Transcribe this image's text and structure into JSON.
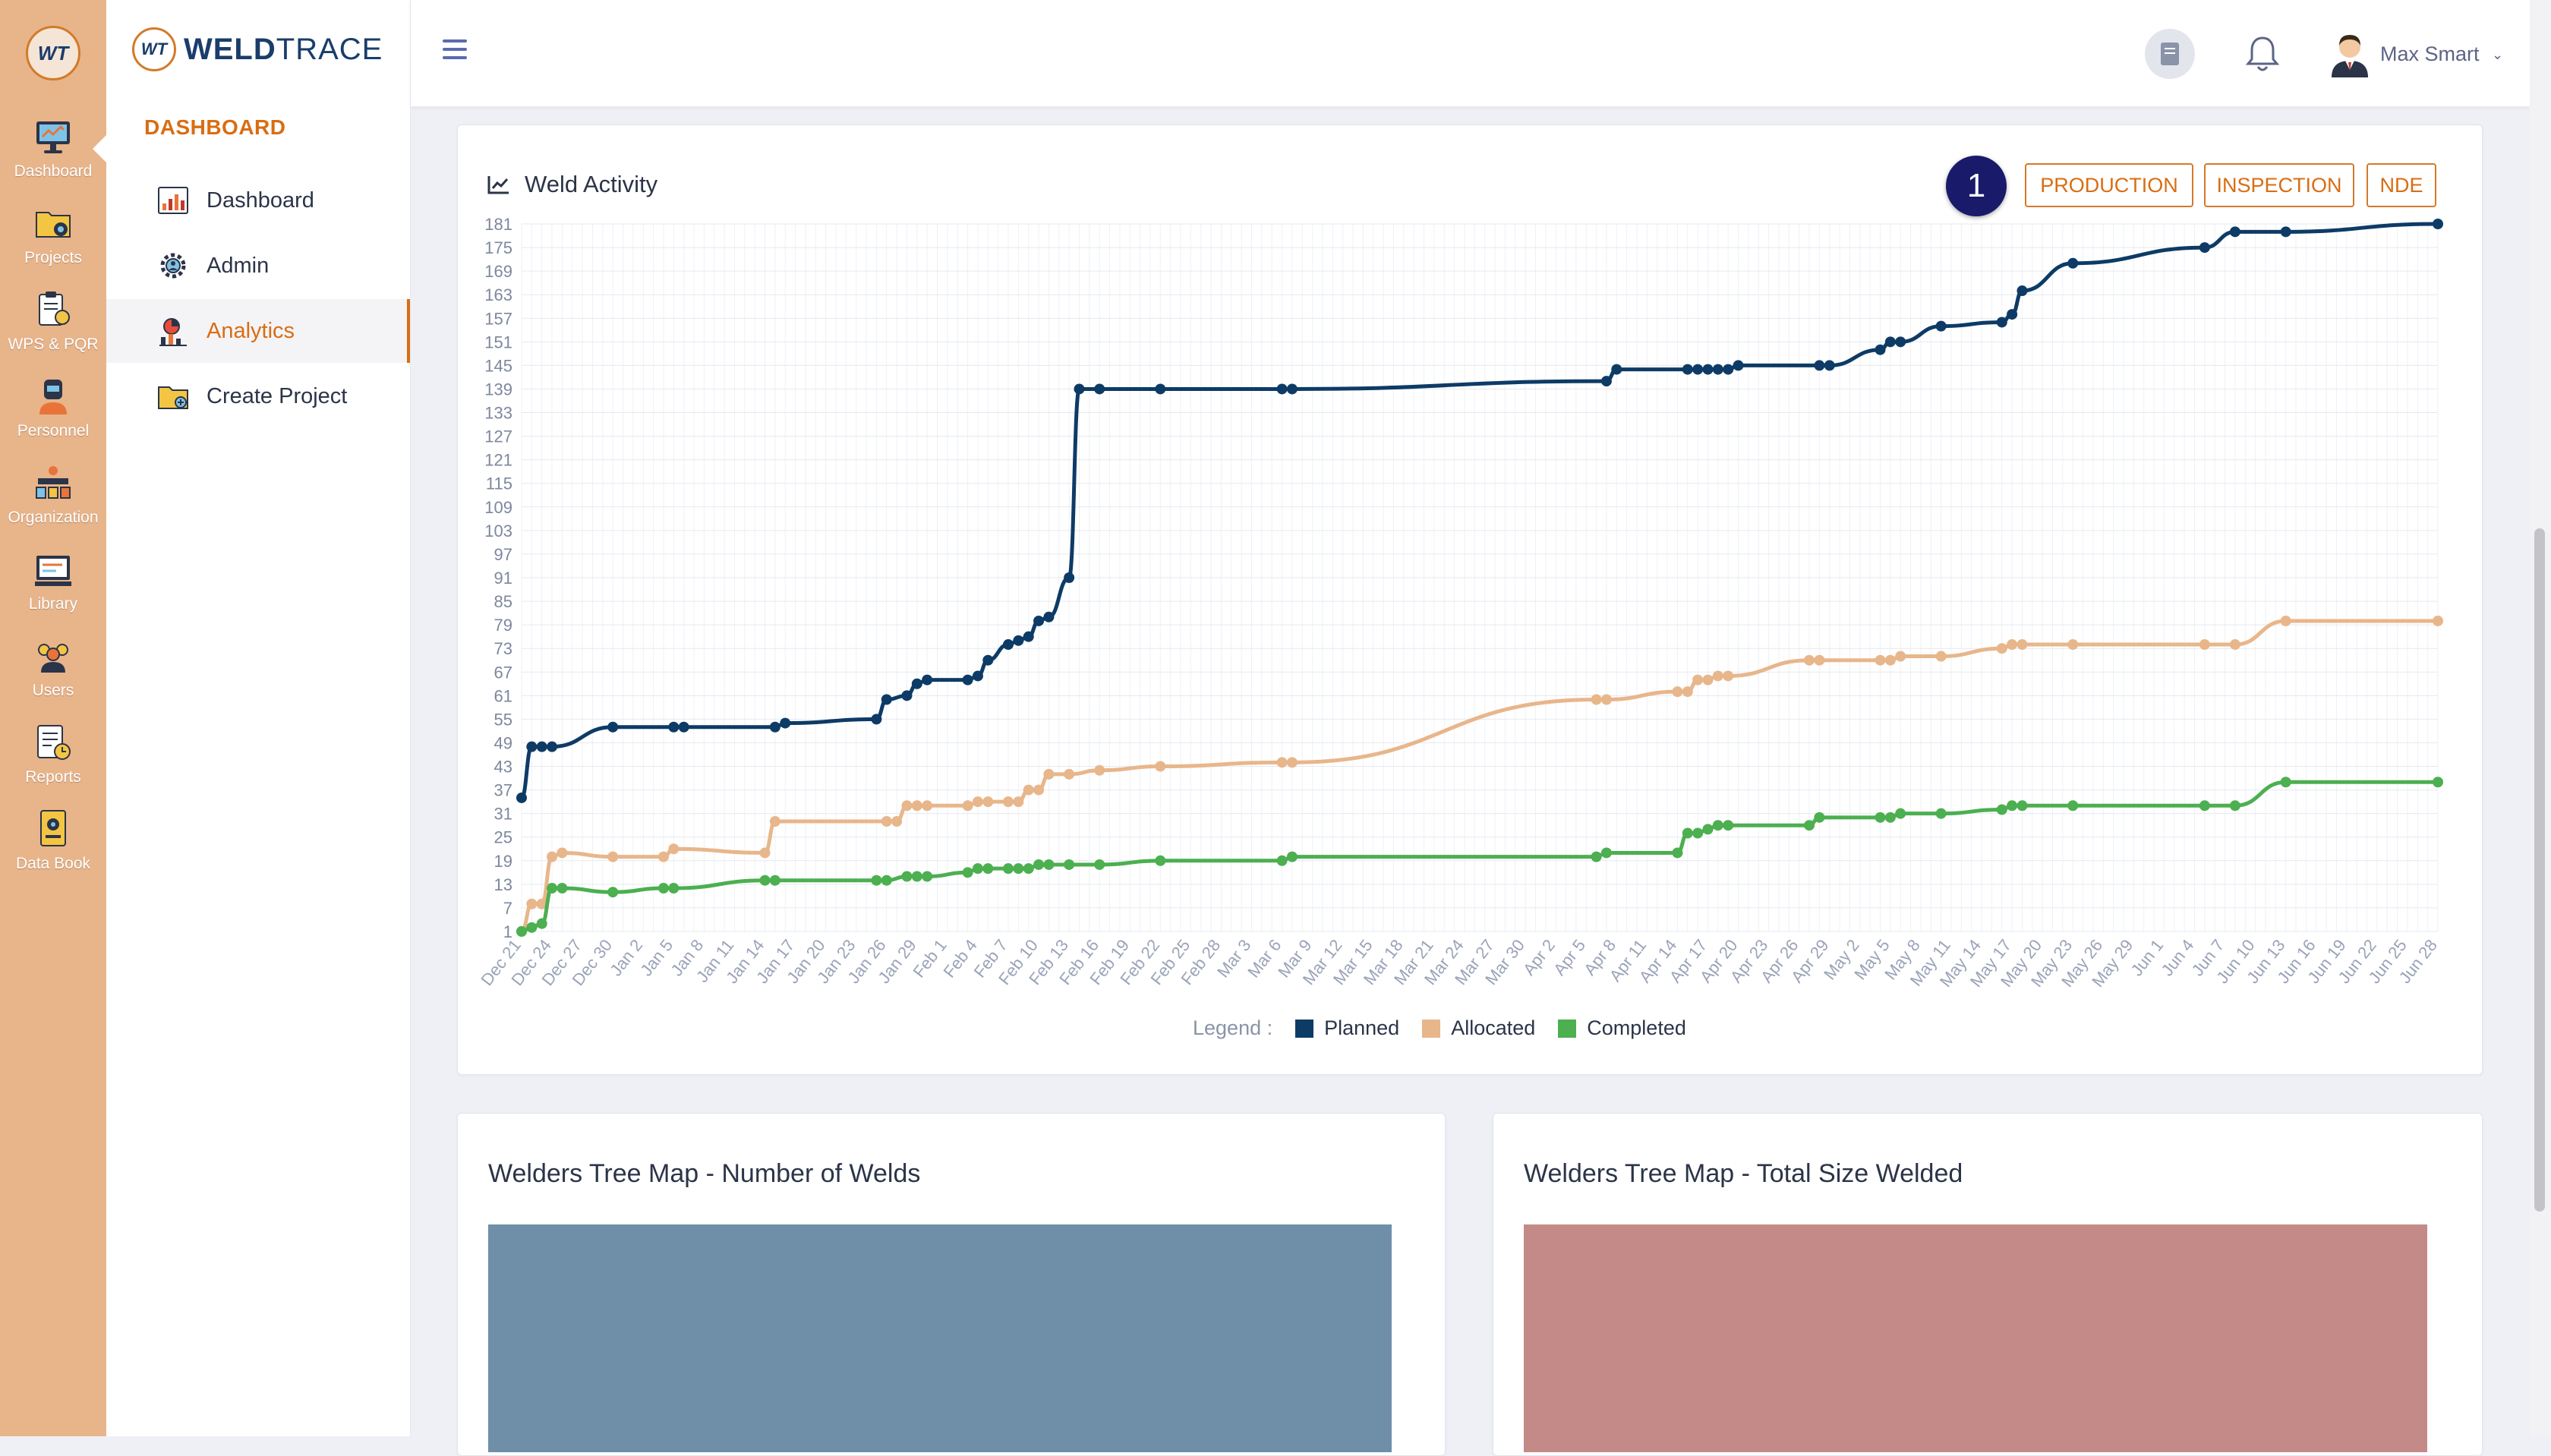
{
  "rail": {
    "logo": "WT",
    "items": [
      {
        "label": "Dashboard",
        "icon": "monitor-icon"
      },
      {
        "label": "Projects",
        "icon": "folder-gear-icon"
      },
      {
        "label": "WPS & PQR",
        "icon": "clipboard-gear-icon"
      },
      {
        "label": "Personnel",
        "icon": "welder-icon"
      },
      {
        "label": "Organization",
        "icon": "organization-icon"
      },
      {
        "label": "Library",
        "icon": "library-icon"
      },
      {
        "label": "Users",
        "icon": "users-icon"
      },
      {
        "label": "Reports",
        "icon": "reports-icon"
      },
      {
        "label": "Data Book",
        "icon": "data-book-icon"
      }
    ]
  },
  "brand": {
    "badge": "WT",
    "name_bold": "WELD",
    "name_light": "TRACE"
  },
  "sidebar": {
    "section": "DASHBOARD",
    "items": [
      {
        "label": "Dashboard",
        "icon": "chart-icon"
      },
      {
        "label": "Admin",
        "icon": "admin-gear-icon"
      },
      {
        "label": "Analytics",
        "icon": "analytics-icon"
      },
      {
        "label": "Create Project",
        "icon": "folder-add-icon"
      }
    ]
  },
  "topbar": {
    "user_name": "Max Smart",
    "chevron": "⌄"
  },
  "weld_activity": {
    "title": "Weld Activity",
    "step_badge": "1",
    "buttons": [
      "PRODUCTION",
      "INSPECTION",
      "NDE"
    ],
    "legend_label": "Legend :"
  },
  "chart_data": {
    "type": "line",
    "title": "Weld Activity",
    "yticks": [
      1,
      7,
      13,
      19,
      25,
      31,
      37,
      43,
      49,
      55,
      61,
      67,
      73,
      79,
      85,
      91,
      97,
      103,
      109,
      115,
      121,
      127,
      133,
      139,
      145,
      151,
      157,
      163,
      169,
      175,
      181
    ],
    "ylim": [
      1,
      181
    ],
    "x_axis_labels": [
      "Dec 21",
      "Dec 24",
      "Dec 27",
      "Dec 30",
      "Jan 2",
      "Jan 5",
      "Jan 8",
      "Jan 11",
      "Jan 14",
      "Jan 17",
      "Jan 20",
      "Jan 23",
      "Jan 26",
      "Jan 29",
      "Feb 1",
      "Feb 4",
      "Feb 7",
      "Feb 10",
      "Feb 13",
      "Feb 16",
      "Feb 19",
      "Feb 22",
      "Feb 25",
      "Feb 28",
      "Mar 3",
      "Mar 6",
      "Mar 9",
      "Mar 12",
      "Mar 15",
      "Mar 18",
      "Mar 21",
      "Mar 24",
      "Mar 27",
      "Mar 30",
      "Apr 2",
      "Apr 5",
      "Apr 8",
      "Apr 11",
      "Apr 14",
      "Apr 17",
      "Apr 20",
      "Apr 23",
      "Apr 26",
      "Apr 29",
      "May 2",
      "May 5",
      "May 8",
      "May 11",
      "May 14",
      "May 17",
      "May 20",
      "May 23",
      "May 26",
      "May 29",
      "Jun 1",
      "Jun 4",
      "Jun 7",
      "Jun 10",
      "Jun 13",
      "Jun 16",
      "Jun 19",
      "Jun 22",
      "Jun 25",
      "Jun 28"
    ],
    "grid": true,
    "legend_position": "bottom",
    "series": [
      {
        "name": "Planned",
        "color": "#0d3b66",
        "x": [
          "Dec 21",
          "Dec 22",
          "Dec 23",
          "Dec 24",
          "Dec 30",
          "Jan 5",
          "Jan 6",
          "Jan 15",
          "Jan 16",
          "Jan 25",
          "Jan 26",
          "Jan 28",
          "Jan 29",
          "Jan 30",
          "Feb 3",
          "Feb 4",
          "Feb 5",
          "Feb 7",
          "Feb 8",
          "Feb 9",
          "Feb 10",
          "Feb 11",
          "Feb 13",
          "Feb 14",
          "Feb 16",
          "Feb 22",
          "Mar 6",
          "Mar 7",
          "Apr 7",
          "Apr 8",
          "Apr 15",
          "Apr 16",
          "Apr 17",
          "Apr 18",
          "Apr 19",
          "Apr 20",
          "Apr 28",
          "Apr 29",
          "May 4",
          "May 5",
          "May 6",
          "May 10",
          "May 16",
          "May 17",
          "May 18",
          "May 23",
          "Jun 5",
          "Jun 8",
          "Jun 13",
          "Jun 28"
        ],
        "y": [
          35,
          48,
          48,
          48,
          53,
          53,
          53,
          53,
          54,
          55,
          60,
          61,
          64,
          65,
          65,
          66,
          70,
          74,
          75,
          76,
          80,
          81,
          91,
          139,
          139,
          139,
          139,
          139,
          141,
          144,
          144,
          144,
          144,
          144,
          144,
          145,
          145,
          145,
          149,
          151,
          151,
          155,
          156,
          158,
          164,
          171,
          175,
          179,
          179,
          181
        ]
      },
      {
        "name": "Allocated",
        "color": "#e8b68b",
        "x": [
          "Dec 21",
          "Dec 22",
          "Dec 23",
          "Dec 24",
          "Dec 25",
          "Dec 30",
          "Jan 4",
          "Jan 5",
          "Jan 14",
          "Jan 15",
          "Jan 26",
          "Jan 27",
          "Jan 28",
          "Jan 29",
          "Jan 30",
          "Feb 3",
          "Feb 4",
          "Feb 5",
          "Feb 7",
          "Feb 8",
          "Feb 9",
          "Feb 10",
          "Feb 11",
          "Feb 13",
          "Feb 16",
          "Feb 22",
          "Mar 6",
          "Mar 7",
          "Apr 6",
          "Apr 7",
          "Apr 14",
          "Apr 15",
          "Apr 16",
          "Apr 17",
          "Apr 18",
          "Apr 19",
          "Apr 27",
          "Apr 28",
          "May 4",
          "May 5",
          "May 6",
          "May 10",
          "May 16",
          "May 17",
          "May 18",
          "May 23",
          "Jun 5",
          "Jun 8",
          "Jun 13",
          "Jun 28"
        ],
        "y": [
          1,
          8,
          8,
          20,
          21,
          20,
          20,
          22,
          21,
          29,
          29,
          29,
          33,
          33,
          33,
          33,
          34,
          34,
          34,
          34,
          37,
          37,
          41,
          41,
          42,
          43,
          44,
          44,
          60,
          60,
          62,
          62,
          65,
          65,
          66,
          66,
          70,
          70,
          70,
          70,
          71,
          71,
          73,
          74,
          74,
          74,
          74,
          74,
          80,
          80
        ]
      },
      {
        "name": "Completed",
        "color": "#4caf50",
        "x": [
          "Dec 21",
          "Dec 22",
          "Dec 23",
          "Dec 24",
          "Dec 25",
          "Dec 30",
          "Jan 4",
          "Jan 5",
          "Jan 14",
          "Jan 15",
          "Jan 25",
          "Jan 26",
          "Jan 28",
          "Jan 29",
          "Jan 30",
          "Feb 3",
          "Feb 4",
          "Feb 5",
          "Feb 7",
          "Feb 8",
          "Feb 9",
          "Feb 10",
          "Feb 11",
          "Feb 13",
          "Feb 16",
          "Feb 22",
          "Mar 6",
          "Mar 7",
          "Apr 6",
          "Apr 7",
          "Apr 14",
          "Apr 15",
          "Apr 16",
          "Apr 17",
          "Apr 18",
          "Apr 19",
          "Apr 27",
          "Apr 28",
          "May 4",
          "May 5",
          "May 6",
          "May 10",
          "May 16",
          "May 17",
          "May 18",
          "May 23",
          "Jun 5",
          "Jun 8",
          "Jun 13",
          "Jun 28"
        ],
        "y": [
          1,
          2,
          3,
          12,
          12,
          11,
          12,
          12,
          14,
          14,
          14,
          14,
          15,
          15,
          15,
          16,
          17,
          17,
          17,
          17,
          17,
          18,
          18,
          18,
          18,
          19,
          19,
          20,
          20,
          21,
          21,
          26,
          26,
          27,
          28,
          28,
          28,
          30,
          30,
          30,
          31,
          31,
          32,
          33,
          33,
          33,
          33,
          33,
          39,
          39
        ]
      }
    ]
  },
  "treemaps": [
    {
      "title": "Welders Tree Map - Number of Welds",
      "color": "#6f8fa8"
    },
    {
      "title": "Welders Tree Map - Total Size Welded",
      "color": "#c48a88"
    }
  ]
}
